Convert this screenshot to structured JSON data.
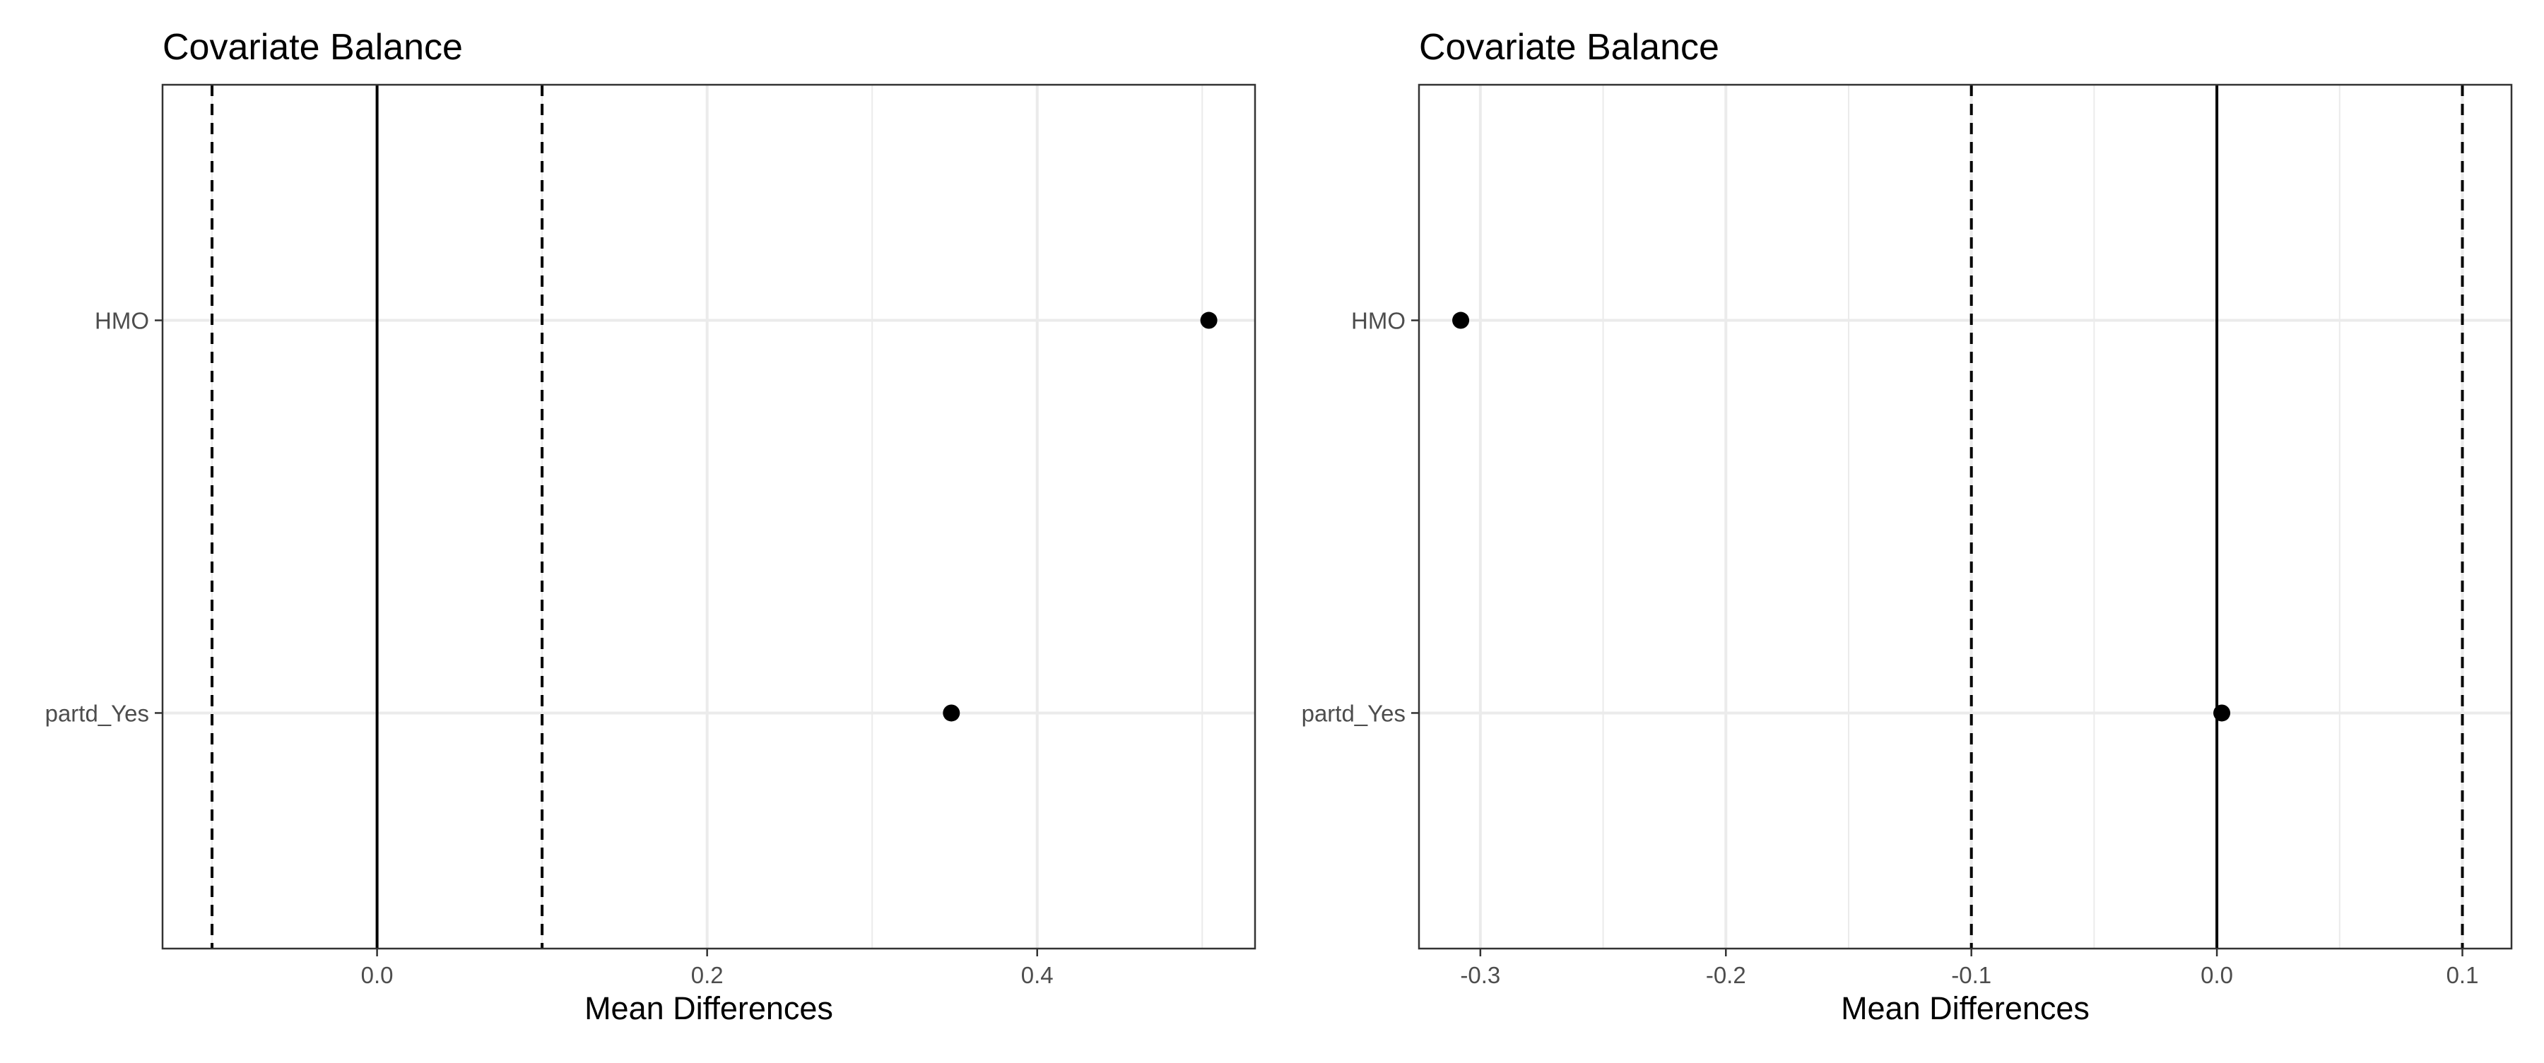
{
  "chart_data": [
    {
      "type": "scatter",
      "title": "Covariate Balance",
      "xlabel": "Mean Differences",
      "ylabel": "",
      "categories": [
        "HMO",
        "partd_Yes"
      ],
      "xlim": [
        -0.13,
        0.532
      ],
      "x_ticks": [
        0.0,
        0.2,
        0.4
      ],
      "x_tick_labels": [
        "0.0",
        "0.2",
        "0.4"
      ],
      "x_minor_ticks": [
        -0.1,
        0.1,
        0.3,
        0.5
      ],
      "reference_lines": [
        {
          "x": 0.0,
          "style": "solid"
        },
        {
          "x": -0.1,
          "style": "dashed"
        },
        {
          "x": 0.1,
          "style": "dashed"
        }
      ],
      "points": [
        {
          "category": "HMO",
          "x": 0.504
        },
        {
          "category": "partd_Yes",
          "x": 0.348
        }
      ],
      "grid": true,
      "colors": {
        "point": "#000000",
        "grid": "#ebebeb",
        "border": "#333333"
      }
    },
    {
      "type": "scatter",
      "title": "Covariate Balance",
      "xlabel": "Mean Differences",
      "ylabel": "",
      "categories": [
        "HMO",
        "partd_Yes"
      ],
      "xlim": [
        -0.325,
        0.12
      ],
      "x_ticks": [
        -0.3,
        -0.2,
        -0.1,
        0.0,
        0.1
      ],
      "x_tick_labels": [
        "-0.3",
        "-0.2",
        "-0.1",
        "0.0",
        "0.1"
      ],
      "x_minor_ticks": [
        -0.25,
        -0.15,
        -0.05,
        0.05
      ],
      "reference_lines": [
        {
          "x": 0.0,
          "style": "solid"
        },
        {
          "x": -0.1,
          "style": "dashed"
        },
        {
          "x": 0.1,
          "style": "dashed"
        }
      ],
      "points": [
        {
          "category": "HMO",
          "x": -0.308
        },
        {
          "category": "partd_Yes",
          "x": 0.002
        }
      ],
      "grid": true,
      "colors": {
        "point": "#000000",
        "grid": "#ebebeb",
        "border": "#333333"
      }
    }
  ]
}
